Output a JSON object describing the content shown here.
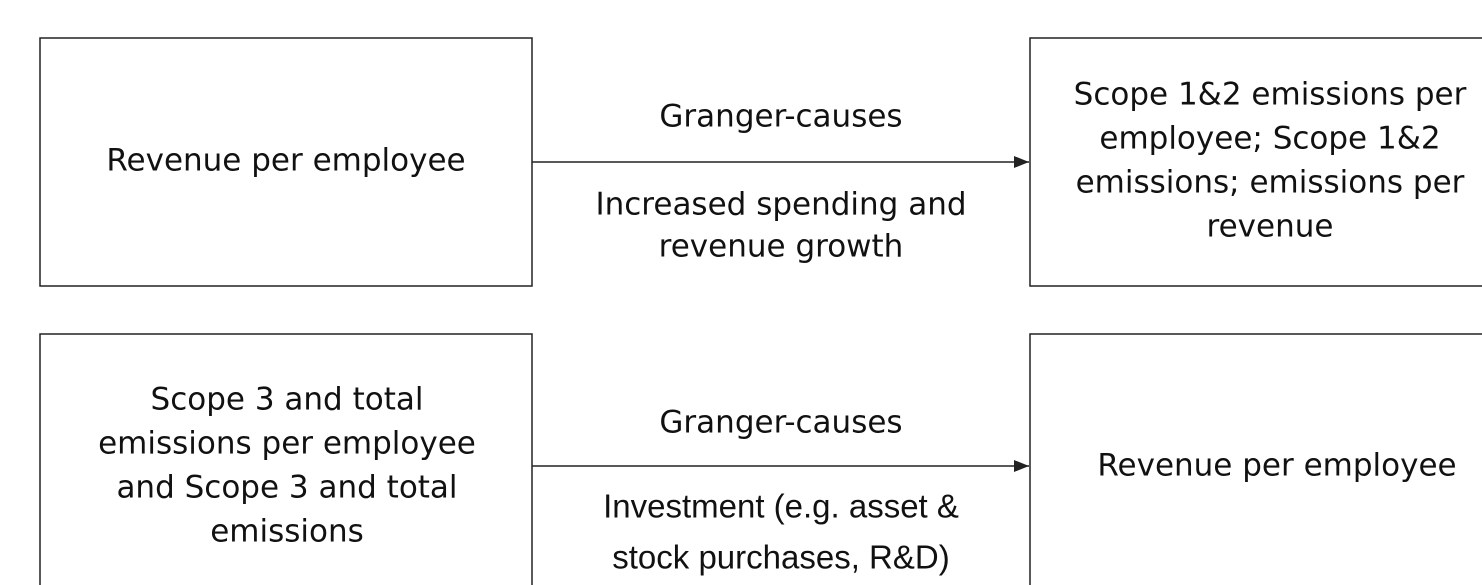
{
  "rows": [
    {
      "source": {
        "lines": [
          "Revenue per employee"
        ]
      },
      "relation": "Granger-causes",
      "mechanism": {
        "lines": [
          "Increased spending and",
          "revenue growth"
        ]
      },
      "target": {
        "lines": [
          "Scope 1&2 emissions per",
          "employee; Scope 1&2",
          "emissions;  emissions per",
          "revenue"
        ]
      }
    },
    {
      "source": {
        "lines": [
          "Scope 3 and total",
          "emissions per employee",
          "and Scope 3 and total",
          "emissions"
        ]
      },
      "relation": "Granger-causes",
      "mechanism": {
        "lines": [
          "Investment (e.g. asset &",
          "stock purchases, R&D)"
        ]
      },
      "target": {
        "lines": [
          "Revenue per employee"
        ]
      }
    }
  ]
}
